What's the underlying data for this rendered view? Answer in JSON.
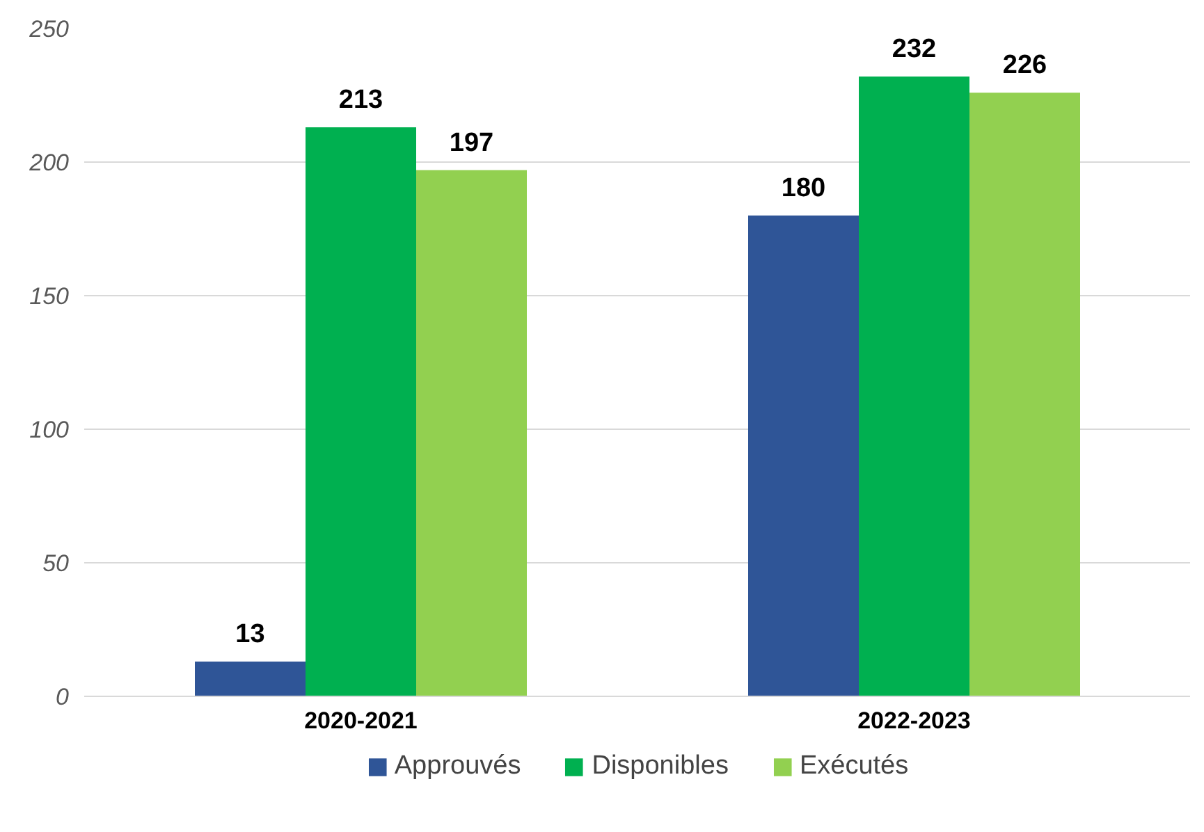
{
  "chart_data": {
    "type": "bar",
    "categories": [
      "2020-2021",
      "2022-2023"
    ],
    "series": [
      {
        "name": "Approuvés",
        "color": "#2f5597",
        "values": [
          13,
          180
        ]
      },
      {
        "name": "Disponibles",
        "color": "#00b050",
        "values": [
          213,
          232
        ]
      },
      {
        "name": "Exécutés",
        "color": "#92d050",
        "values": [
          197,
          226
        ]
      }
    ],
    "ylim": [
      0,
      250
    ],
    "yticks": [
      0,
      50,
      100,
      150,
      200,
      250
    ],
    "grid": "y",
    "legend": "bottom",
    "data_labels": true
  }
}
